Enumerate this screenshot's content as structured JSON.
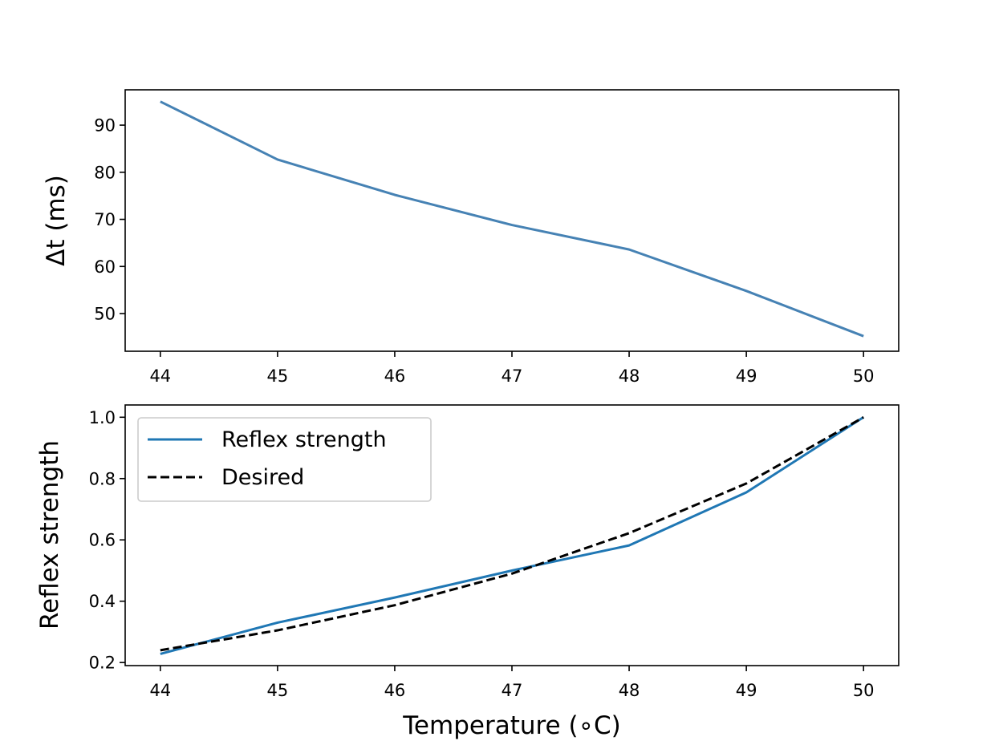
{
  "chart_data": [
    {
      "type": "line",
      "x": [
        44,
        45,
        46,
        47,
        48,
        49,
        50
      ],
      "series": [
        {
          "name": "Δt",
          "values": [
            95.0,
            82.7,
            75.2,
            68.8,
            63.6,
            54.8,
            45.2
          ],
          "color": "#4682b4",
          "style": "solid"
        }
      ],
      "xlim": [
        43.7,
        50.3
      ],
      "ylim": [
        42.0,
        97.5
      ],
      "xticks": [
        44,
        45,
        46,
        47,
        48,
        49,
        50
      ],
      "xtick_labels": [
        "44",
        "45",
        "46",
        "47",
        "48",
        "49",
        "50"
      ],
      "yticks": [
        50,
        60,
        70,
        80,
        90
      ],
      "ytick_labels": [
        "50",
        "60",
        "70",
        "80",
        "90"
      ],
      "xlabel": "",
      "ylabel": "Δt (ms)",
      "grid": false
    },
    {
      "type": "line",
      "x": [
        44,
        45,
        46,
        47,
        48,
        49,
        50
      ],
      "series": [
        {
          "name": "Reflex strength",
          "values": [
            0.228,
            0.33,
            0.412,
            0.5,
            0.582,
            0.755,
            1.0
          ],
          "color": "#1f77b4",
          "style": "solid"
        },
        {
          "name": "Desired",
          "values": [
            0.24,
            0.305,
            0.387,
            0.49,
            0.622,
            0.784,
            1.0
          ],
          "color": "#000000",
          "style": "dashed"
        }
      ],
      "xlim": [
        43.7,
        50.3
      ],
      "ylim": [
        0.19,
        1.04
      ],
      "xticks": [
        44,
        45,
        46,
        47,
        48,
        49,
        50
      ],
      "xtick_labels": [
        "44",
        "45",
        "46",
        "47",
        "48",
        "49",
        "50"
      ],
      "yticks": [
        0.2,
        0.4,
        0.6,
        0.8,
        1.0
      ],
      "ytick_labels": [
        "0.2",
        "0.4",
        "0.6",
        "0.8",
        "1.0"
      ],
      "xlabel": "Temperature ($^\\circ$C)",
      "xlabel_display": "Temperature (∘C)",
      "ylabel": "Reflex strength",
      "legend": {
        "placement": "top-left",
        "entries": [
          "Reflex strength",
          "Desired"
        ]
      },
      "grid": false
    }
  ]
}
